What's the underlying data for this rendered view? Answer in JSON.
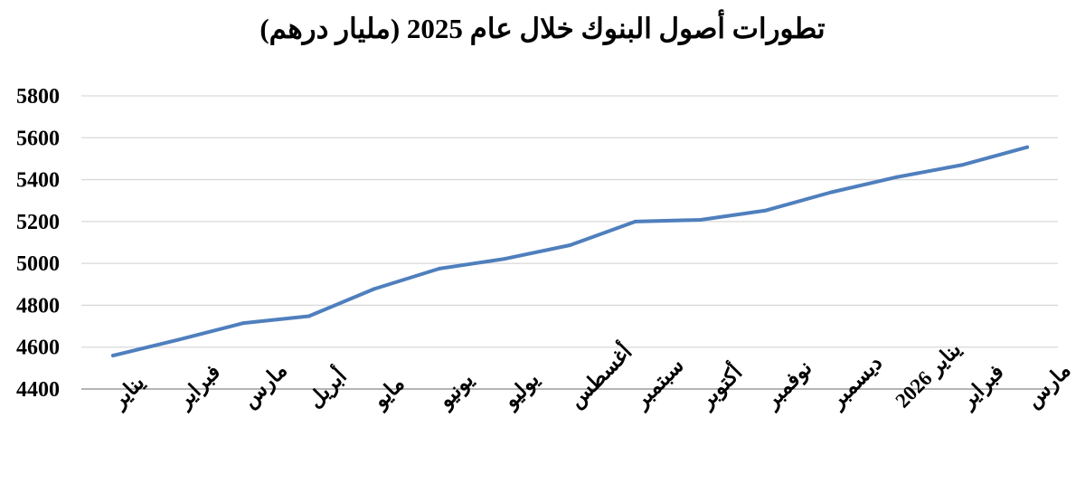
{
  "chart_data": {
    "type": "line",
    "title": "تطورات أصول البنوك خلال عام 2025 (مليار درهم)",
    "xlabel": "",
    "ylabel": "",
    "categories": [
      "يناير",
      "فبراير",
      "مارس",
      "أبريل",
      "مايو",
      "يونيو",
      "يوليو",
      "أغسطس",
      "سبتمبر",
      "أكتوبر",
      "نوفمبر",
      "ديسمبر",
      "يناير 2026",
      "فبراير",
      "مارس"
    ],
    "series": [
      {
        "values": [
          4560,
          4635,
          4715,
          4748,
          4878,
          4975,
          5022,
          5087,
          5200,
          5208,
          5253,
          5340,
          5412,
          5470,
          5555
        ]
      }
    ],
    "ylim": [
      4400,
      5800
    ],
    "yticks": [
      4400,
      4600,
      4800,
      5000,
      5200,
      5400,
      5600,
      5800
    ],
    "grid": "horizontal",
    "legend": "none",
    "colors": {
      "line": "#4f7fbd",
      "grid": "#d9d9d9",
      "axis": "#868686",
      "text": "#000000"
    }
  }
}
